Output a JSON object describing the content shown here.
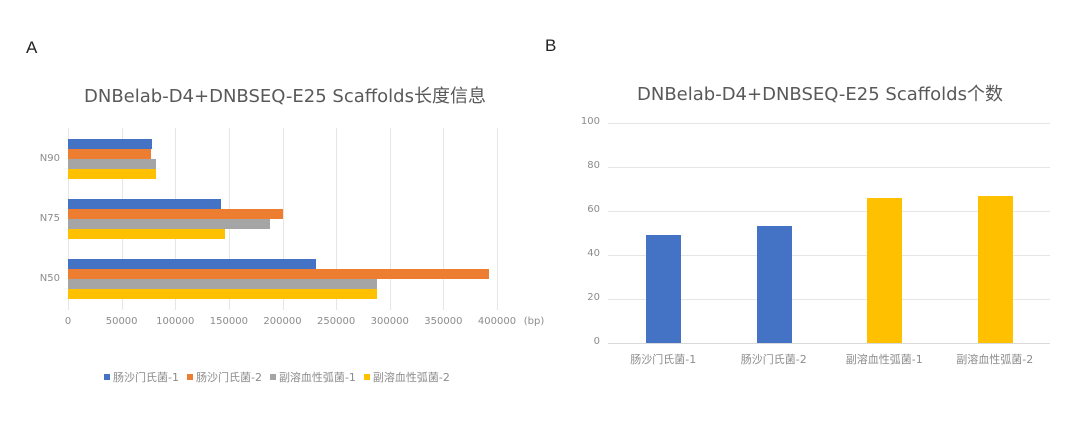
{
  "panels": {
    "a_label": "A",
    "b_label": "B"
  },
  "colors": {
    "blue": "#4472c4",
    "orange": "#ed7d31",
    "gray": "#a5a5a5",
    "yellow": "#ffc000"
  },
  "chart_data": [
    {
      "type": "bar",
      "orientation": "horizontal",
      "title": "DNBelab-D4+DNBSEQ-E25 Scaffolds长度信息",
      "xlabel": "(bp)",
      "ylabel": "",
      "categories": [
        "N90",
        "N75",
        "N50"
      ],
      "x_ticks": [
        "0",
        "50000",
        "100000",
        "150000",
        "200000",
        "250000",
        "300000",
        "350000",
        "400000"
      ],
      "xlim": [
        0,
        400000
      ],
      "grid": true,
      "legend_position": "bottom",
      "series": [
        {
          "name": "肠沙门氏菌-1",
          "color": "#4472c4",
          "values": [
            78000,
            143000,
            231000
          ]
        },
        {
          "name": "肠沙门氏菌-2",
          "color": "#ed7d31",
          "values": [
            77000,
            200000,
            393000
          ]
        },
        {
          "name": "副溶血性弧菌-1",
          "color": "#a5a5a5",
          "values": [
            82000,
            188000,
            288000
          ]
        },
        {
          "name": "副溶血性弧菌-2",
          "color": "#ffc000",
          "values": [
            82000,
            146000,
            288000
          ]
        }
      ]
    },
    {
      "type": "bar",
      "orientation": "vertical",
      "title": "DNBelab-D4+DNBSEQ-E25 Scaffolds个数",
      "xlabel": "",
      "ylabel": "",
      "categories": [
        "肠沙门氏菌-1",
        "肠沙门氏菌-2",
        "副溶血性弧菌-1",
        "副溶血性弧菌-2"
      ],
      "values": [
        49,
        53,
        66,
        67
      ],
      "bar_colors": [
        "#4472c4",
        "#4472c4",
        "#ffc000",
        "#ffc000"
      ],
      "y_ticks": [
        "0",
        "20",
        "40",
        "60",
        "80",
        "100"
      ],
      "ylim": [
        0,
        100
      ],
      "grid": true
    }
  ]
}
